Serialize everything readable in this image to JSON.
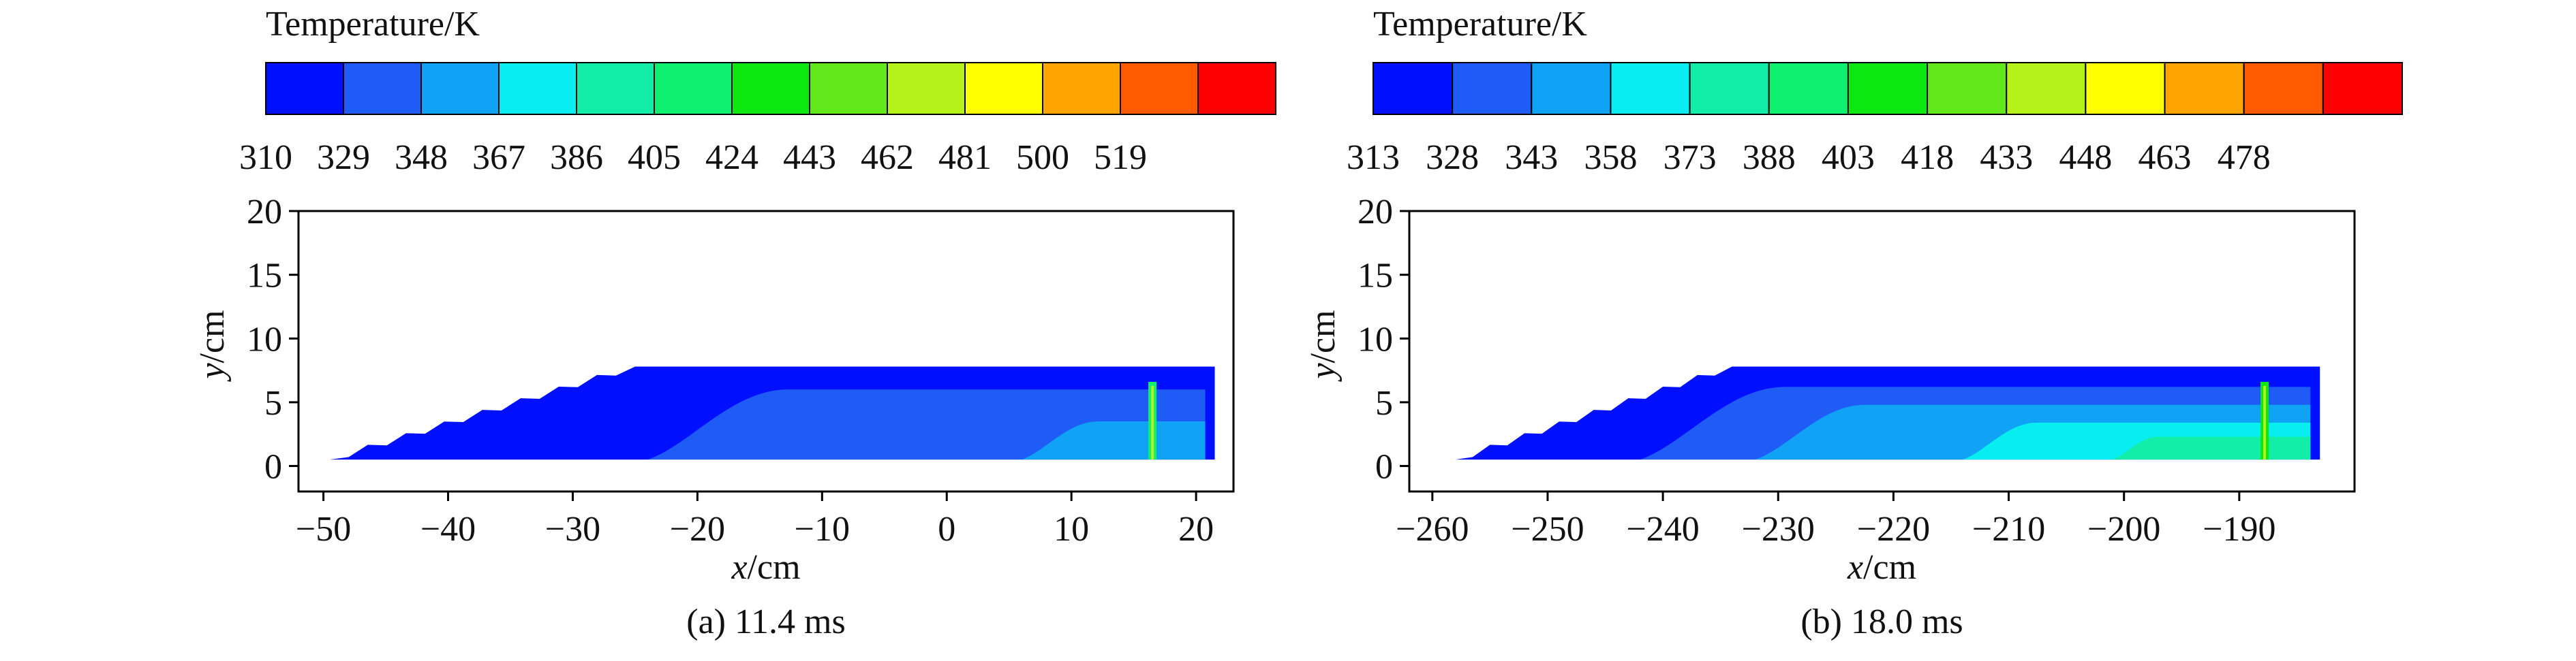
{
  "figures": [
    {
      "caption": "(a) 11.4 ms",
      "colorbar": {
        "title": "Temperature/K",
        "ticks": [
          "310",
          "329",
          "348",
          "367",
          "386",
          "405",
          "424",
          "443",
          "462",
          "481",
          "500",
          "519"
        ],
        "colors": [
          "#0010ff",
          "#1f5cf5",
          "#10a2f5",
          "#08eef0",
          "#12eda8",
          "#10f070",
          "#0de810",
          "#62e81a",
          "#b4f21a",
          "#ffff00",
          "#ffa500",
          "#ff5a00",
          "#ff0000"
        ]
      },
      "chart_data": {
        "type": "heatmap",
        "xlabel": "x/cm",
        "ylabel": "y/cm",
        "xlim": [
          -52,
          23
        ],
        "ylim": [
          -2,
          20
        ],
        "xticks": [
          -50,
          -40,
          -30,
          -20,
          -10,
          0,
          10,
          20
        ],
        "yticks": [
          0,
          5,
          10,
          15,
          20
        ],
        "domain": {
          "x_start": -49.5,
          "x_ramp_end": -25,
          "x_end": 21.5,
          "y_bottom": 0.5,
          "y_top": 7.8
        },
        "regions": [
          {
            "label": "background",
            "temperature": 310
          },
          {
            "label": "inner-band",
            "temperature": 329,
            "x_from": -24,
            "y_top": 6.0
          },
          {
            "label": "warm-zone",
            "temperature": 348,
            "x_from": 6,
            "y_top": 3.5
          },
          {
            "label": "front",
            "temperature": 405,
            "x": 16.5,
            "y_top": 6.6
          }
        ]
      }
    },
    {
      "caption": "(b) 18.0 ms",
      "colorbar": {
        "title": "Temperature/K",
        "ticks": [
          "313",
          "328",
          "343",
          "358",
          "373",
          "388",
          "403",
          "418",
          "433",
          "448",
          "463",
          "478"
        ],
        "colors": [
          "#0010ff",
          "#1f5cf5",
          "#10a2f5",
          "#08eef0",
          "#12eda8",
          "#10f070",
          "#0de810",
          "#62e81a",
          "#b4f21a",
          "#ffff00",
          "#ffa500",
          "#ff5a00",
          "#ff0000"
        ]
      },
      "chart_data": {
        "type": "heatmap",
        "xlabel": "x/cm",
        "ylabel": "y/cm",
        "xlim": [
          -262,
          -180
        ],
        "ylim": [
          -2,
          20
        ],
        "xticks": [
          -260,
          -250,
          -240,
          -230,
          -220,
          -210,
          -200,
          -190
        ],
        "yticks": [
          0,
          5,
          10,
          15,
          20
        ],
        "domain": {
          "x_start": -258,
          "x_ramp_end": -234,
          "x_end": -183,
          "y_bottom": 0.5,
          "y_top": 7.8
        },
        "regions": [
          {
            "label": "background",
            "temperature": 313
          },
          {
            "label": "inner-band",
            "temperature": 328,
            "x_from": -242,
            "y_top": 6.2
          },
          {
            "label": "mid-zone",
            "temperature": 343,
            "x_from": -232,
            "y_top": 4.8
          },
          {
            "label": "warm-zone",
            "temperature": 358,
            "x_from": -214,
            "y_top": 3.4
          },
          {
            "label": "hot-core",
            "temperature": 373,
            "x_from": -201,
            "y_top": 2.3
          },
          {
            "label": "front",
            "temperature": 403,
            "x": -187.8,
            "y_top": 6.6
          }
        ]
      }
    }
  ]
}
